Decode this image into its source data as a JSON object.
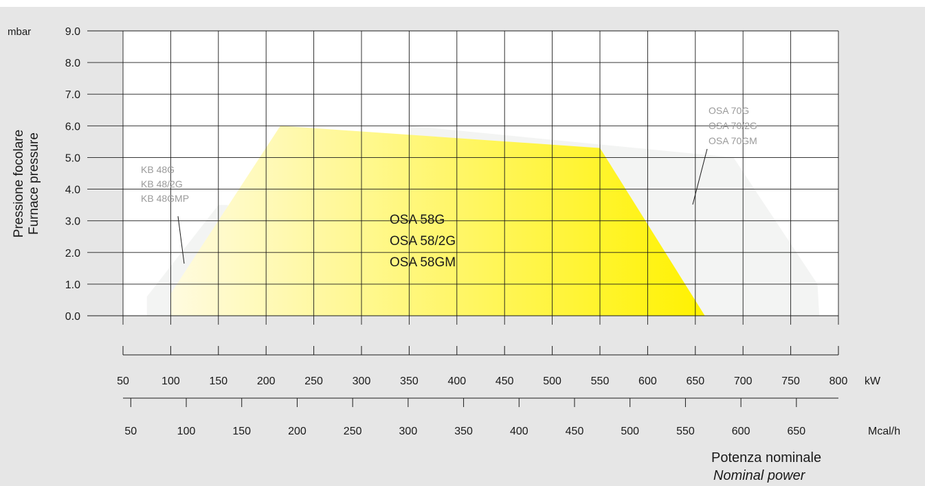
{
  "chart_data": {
    "type": "area",
    "y_unit": "mbar",
    "ylabel_lines": [
      "Pressione focolare",
      "Furnace pressure"
    ],
    "y_ticks": [
      "0.0",
      "1.0",
      "2.0",
      "3.0",
      "4.0",
      "5.0",
      "6.0",
      "7.0",
      "8.0",
      "9.0"
    ],
    "ylim": [
      0,
      9
    ],
    "x_kw": {
      "unit": "kW",
      "range": [
        50,
        800
      ],
      "ticks": [
        "50",
        "100",
        "150",
        "200",
        "250",
        "300",
        "350",
        "400",
        "450",
        "500",
        "550",
        "600",
        "650",
        "700",
        "750",
        "800"
      ]
    },
    "x_mcal": {
      "unit": "Mcal/h",
      "ticks": [
        "50",
        "100",
        "150",
        "200",
        "250",
        "300",
        "350",
        "400",
        "450",
        "500",
        "550",
        "600",
        "650"
      ]
    },
    "xlabel_lines": [
      "Potenza nominale",
      "Nominal power"
    ],
    "grid": true,
    "series": [
      {
        "name_lines": [
          "KB 48G",
          "KB 48/2G",
          "KB 48GMP"
        ],
        "color": "#f3f4f3",
        "points": [
          [
            75,
            0
          ],
          [
            75,
            0.6
          ],
          [
            150,
            3.5
          ],
          [
            160,
            3.5
          ],
          [
            160,
            0
          ]
        ]
      },
      {
        "name_lines": [
          "OSA 70G",
          "OSA 70/2G",
          "OSA 70GM"
        ],
        "color": "#f3f4f3",
        "points": [
          [
            350,
            0
          ],
          [
            350,
            6.0
          ],
          [
            690,
            5.0
          ],
          [
            778,
            1.0
          ],
          [
            780,
            0
          ]
        ]
      },
      {
        "name_lines": [
          "OSA 58G",
          "OSA 58/2G",
          "OSA 58GM"
        ],
        "gradient": [
          "#fffbe0",
          "#fff200"
        ],
        "points": [
          [
            100,
            0
          ],
          [
            100,
            0.7
          ],
          [
            215,
            6.0
          ],
          [
            550,
            5.3
          ],
          [
            660,
            0
          ]
        ]
      }
    ]
  }
}
